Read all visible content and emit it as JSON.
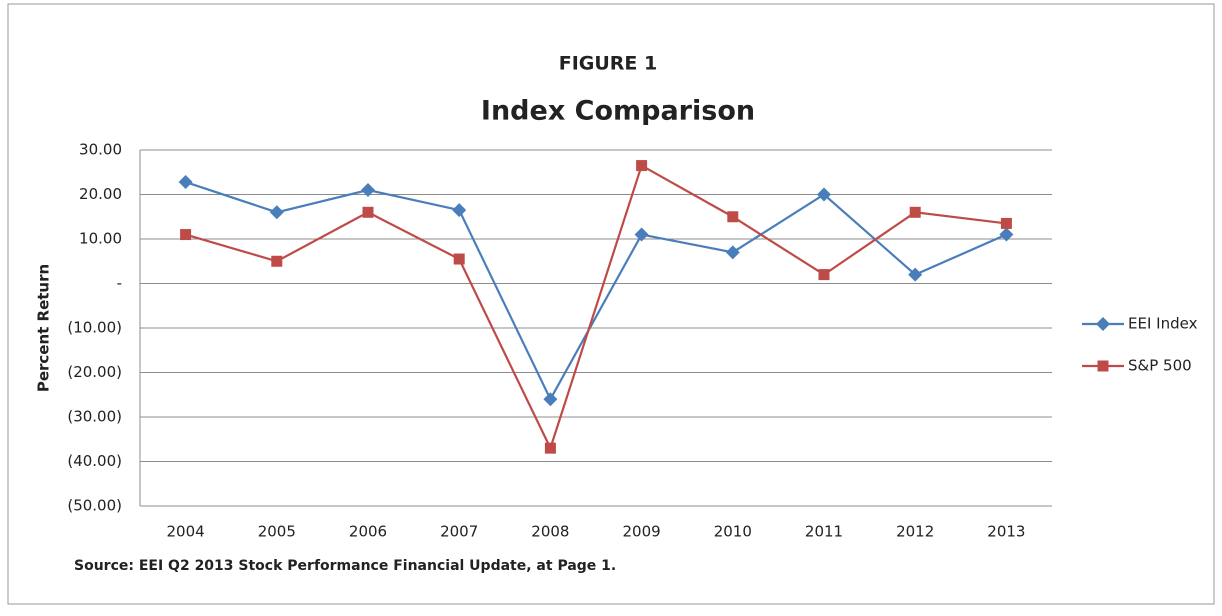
{
  "chart_data": {
    "type": "line",
    "figure_label": "FIGURE 1",
    "title": "Index Comparison",
    "y_label": "Percent Return",
    "source": "Source: EEI Q2 2013 Stock Performance Financial Update, at Page 1.",
    "categories": [
      "2004",
      "2005",
      "2006",
      "2007",
      "2008",
      "2009",
      "2010",
      "2011",
      "2012",
      "2013"
    ],
    "series": [
      {
        "name": "EEI Index",
        "color": "#4a7ebb",
        "marker": "diamond",
        "values": [
          22.8,
          16,
          21,
          16.5,
          -26,
          11,
          7,
          20,
          2,
          11
        ]
      },
      {
        "name": "S&P 500",
        "color": "#be4b48",
        "marker": "square",
        "values": [
          11,
          5,
          16,
          5.5,
          -37,
          26.5,
          15,
          2,
          16,
          13.5
        ]
      }
    ],
    "ylim": [
      -50,
      30
    ],
    "yticks": [
      {
        "value": -50,
        "label": "(50.00)"
      },
      {
        "value": -40,
        "label": "(40.00)"
      },
      {
        "value": -30,
        "label": "(30.00)"
      },
      {
        "value": -20,
        "label": "(20.00)"
      },
      {
        "value": -10,
        "label": "(10.00)"
      },
      {
        "value": 0,
        "label": "-"
      },
      {
        "value": 10,
        "label": "10.00"
      },
      {
        "value": 20,
        "label": "20.00"
      },
      {
        "value": 30,
        "label": "30.00"
      }
    ],
    "grid": true,
    "legend": "right"
  }
}
